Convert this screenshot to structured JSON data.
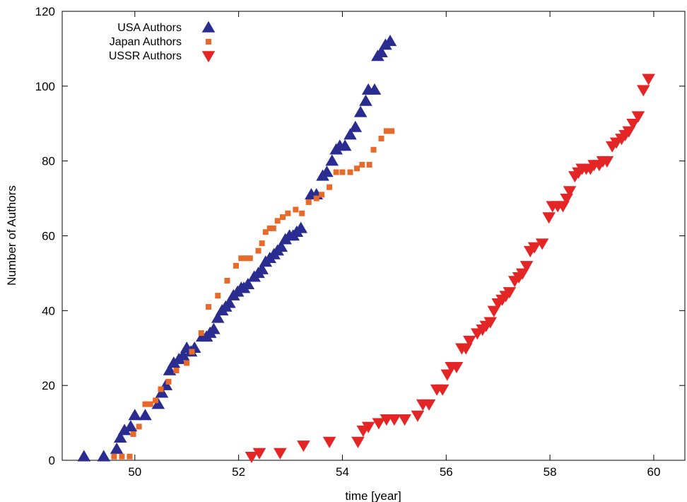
{
  "chart_data": {
    "type": "scatter",
    "title": "",
    "xlabel": "time [year]",
    "ylabel": "Number of Authors",
    "xlim": [
      48.6,
      60.6
    ],
    "ylim": [
      0,
      120
    ],
    "xticks": [
      50,
      52,
      54,
      56,
      58,
      60
    ],
    "yticks": [
      0,
      20,
      40,
      60,
      80,
      100,
      120
    ],
    "legend_position": "top-left",
    "series": [
      {
        "name": "USA Authors",
        "marker": "triangle-up",
        "color": "#2a2c8f",
        "points": [
          [
            49.02,
            1
          ],
          [
            49.4,
            1
          ],
          [
            49.65,
            3
          ],
          [
            49.72,
            6
          ],
          [
            49.8,
            8
          ],
          [
            49.92,
            9
          ],
          [
            50.0,
            12
          ],
          [
            50.2,
            12
          ],
          [
            50.45,
            15
          ],
          [
            50.52,
            18
          ],
          [
            50.6,
            20
          ],
          [
            50.67,
            24
          ],
          [
            50.75,
            26
          ],
          [
            50.85,
            27
          ],
          [
            50.93,
            28
          ],
          [
            51.0,
            30
          ],
          [
            51.08,
            29
          ],
          [
            51.15,
            30
          ],
          [
            51.3,
            33
          ],
          [
            51.38,
            33
          ],
          [
            51.45,
            34
          ],
          [
            51.52,
            35
          ],
          [
            51.6,
            38
          ],
          [
            51.68,
            40
          ],
          [
            51.75,
            41
          ],
          [
            51.82,
            42
          ],
          [
            51.9,
            44
          ],
          [
            51.98,
            45
          ],
          [
            52.05,
            46
          ],
          [
            52.1,
            46
          ],
          [
            52.18,
            47
          ],
          [
            52.3,
            49
          ],
          [
            52.38,
            50
          ],
          [
            52.45,
            51
          ],
          [
            52.52,
            53
          ],
          [
            52.6,
            54
          ],
          [
            52.68,
            55
          ],
          [
            52.75,
            56
          ],
          [
            52.82,
            57
          ],
          [
            52.9,
            59
          ],
          [
            52.98,
            60
          ],
          [
            53.05,
            60
          ],
          [
            53.12,
            61
          ],
          [
            53.2,
            62
          ],
          [
            53.4,
            71
          ],
          [
            53.5,
            71
          ],
          [
            53.62,
            76
          ],
          [
            53.7,
            77
          ],
          [
            53.8,
            80
          ],
          [
            53.88,
            83
          ],
          [
            53.95,
            84
          ],
          [
            54.05,
            84
          ],
          [
            54.15,
            87
          ],
          [
            54.25,
            89
          ],
          [
            54.35,
            93
          ],
          [
            54.45,
            96
          ],
          [
            54.5,
            99
          ],
          [
            54.62,
            99
          ],
          [
            54.68,
            108
          ],
          [
            54.75,
            109
          ],
          [
            54.83,
            111
          ],
          [
            54.92,
            112
          ]
        ]
      },
      {
        "name": "Japan Authors",
        "marker": "square",
        "color": "#e86a2a",
        "points": [
          [
            49.6,
            1
          ],
          [
            49.75,
            1
          ],
          [
            49.9,
            1
          ],
          [
            49.97,
            7
          ],
          [
            50.08,
            9
          ],
          [
            50.2,
            15
          ],
          [
            50.3,
            15
          ],
          [
            50.4,
            16
          ],
          [
            50.5,
            19
          ],
          [
            50.65,
            21
          ],
          [
            50.8,
            24
          ],
          [
            51.0,
            26
          ],
          [
            51.1,
            29
          ],
          [
            51.28,
            34
          ],
          [
            51.42,
            41
          ],
          [
            51.6,
            44
          ],
          [
            51.78,
            48
          ],
          [
            51.95,
            52
          ],
          [
            52.05,
            54
          ],
          [
            52.15,
            54
          ],
          [
            52.22,
            54
          ],
          [
            52.38,
            56
          ],
          [
            52.45,
            58
          ],
          [
            52.52,
            61
          ],
          [
            52.6,
            62
          ],
          [
            52.67,
            62
          ],
          [
            52.75,
            64
          ],
          [
            52.85,
            65
          ],
          [
            52.95,
            66
          ],
          [
            53.1,
            67
          ],
          [
            53.22,
            66
          ],
          [
            53.35,
            69
          ],
          [
            53.5,
            70
          ],
          [
            53.6,
            71
          ],
          [
            53.75,
            73
          ],
          [
            53.88,
            77
          ],
          [
            54.0,
            77
          ],
          [
            54.15,
            77
          ],
          [
            54.28,
            78
          ],
          [
            54.38,
            79
          ],
          [
            54.52,
            79
          ],
          [
            54.6,
            83
          ],
          [
            54.75,
            86
          ],
          [
            54.85,
            88
          ],
          [
            54.95,
            88
          ]
        ]
      },
      {
        "name": "USSR Authors",
        "marker": "triangle-down",
        "color": "#e42526",
        "points": [
          [
            52.25,
            1
          ],
          [
            52.4,
            2
          ],
          [
            52.8,
            2
          ],
          [
            53.25,
            4
          ],
          [
            53.75,
            5
          ],
          [
            54.3,
            5
          ],
          [
            54.4,
            8
          ],
          [
            54.5,
            9
          ],
          [
            54.7,
            10
          ],
          [
            54.85,
            11
          ],
          [
            55.0,
            11
          ],
          [
            55.2,
            11
          ],
          [
            55.45,
            12
          ],
          [
            55.55,
            15
          ],
          [
            55.67,
            15
          ],
          [
            55.82,
            19
          ],
          [
            55.93,
            19
          ],
          [
            56.02,
            23
          ],
          [
            56.1,
            25
          ],
          [
            56.2,
            25
          ],
          [
            56.3,
            30
          ],
          [
            56.38,
            30
          ],
          [
            56.45,
            32
          ],
          [
            56.6,
            34
          ],
          [
            56.7,
            35
          ],
          [
            56.77,
            36
          ],
          [
            56.85,
            37
          ],
          [
            56.92,
            40
          ],
          [
            57.0,
            42
          ],
          [
            57.08,
            43
          ],
          [
            57.15,
            44
          ],
          [
            57.22,
            45
          ],
          [
            57.32,
            48
          ],
          [
            57.4,
            49
          ],
          [
            57.47,
            50
          ],
          [
            57.55,
            52
          ],
          [
            57.62,
            56
          ],
          [
            57.7,
            57
          ],
          [
            57.85,
            58
          ],
          [
            57.98,
            65
          ],
          [
            58.05,
            68
          ],
          [
            58.15,
            68
          ],
          [
            58.25,
            68
          ],
          [
            58.32,
            70
          ],
          [
            58.38,
            72
          ],
          [
            58.48,
            76
          ],
          [
            58.55,
            77
          ],
          [
            58.62,
            78
          ],
          [
            58.7,
            78
          ],
          [
            58.78,
            78
          ],
          [
            58.85,
            79
          ],
          [
            58.95,
            79
          ],
          [
            59.02,
            80
          ],
          [
            59.1,
            80
          ],
          [
            59.2,
            84
          ],
          [
            59.28,
            85
          ],
          [
            59.38,
            86
          ],
          [
            59.45,
            87
          ],
          [
            59.52,
            88
          ],
          [
            59.6,
            90
          ],
          [
            59.7,
            92
          ],
          [
            59.8,
            99
          ],
          [
            59.9,
            102
          ]
        ]
      }
    ]
  }
}
